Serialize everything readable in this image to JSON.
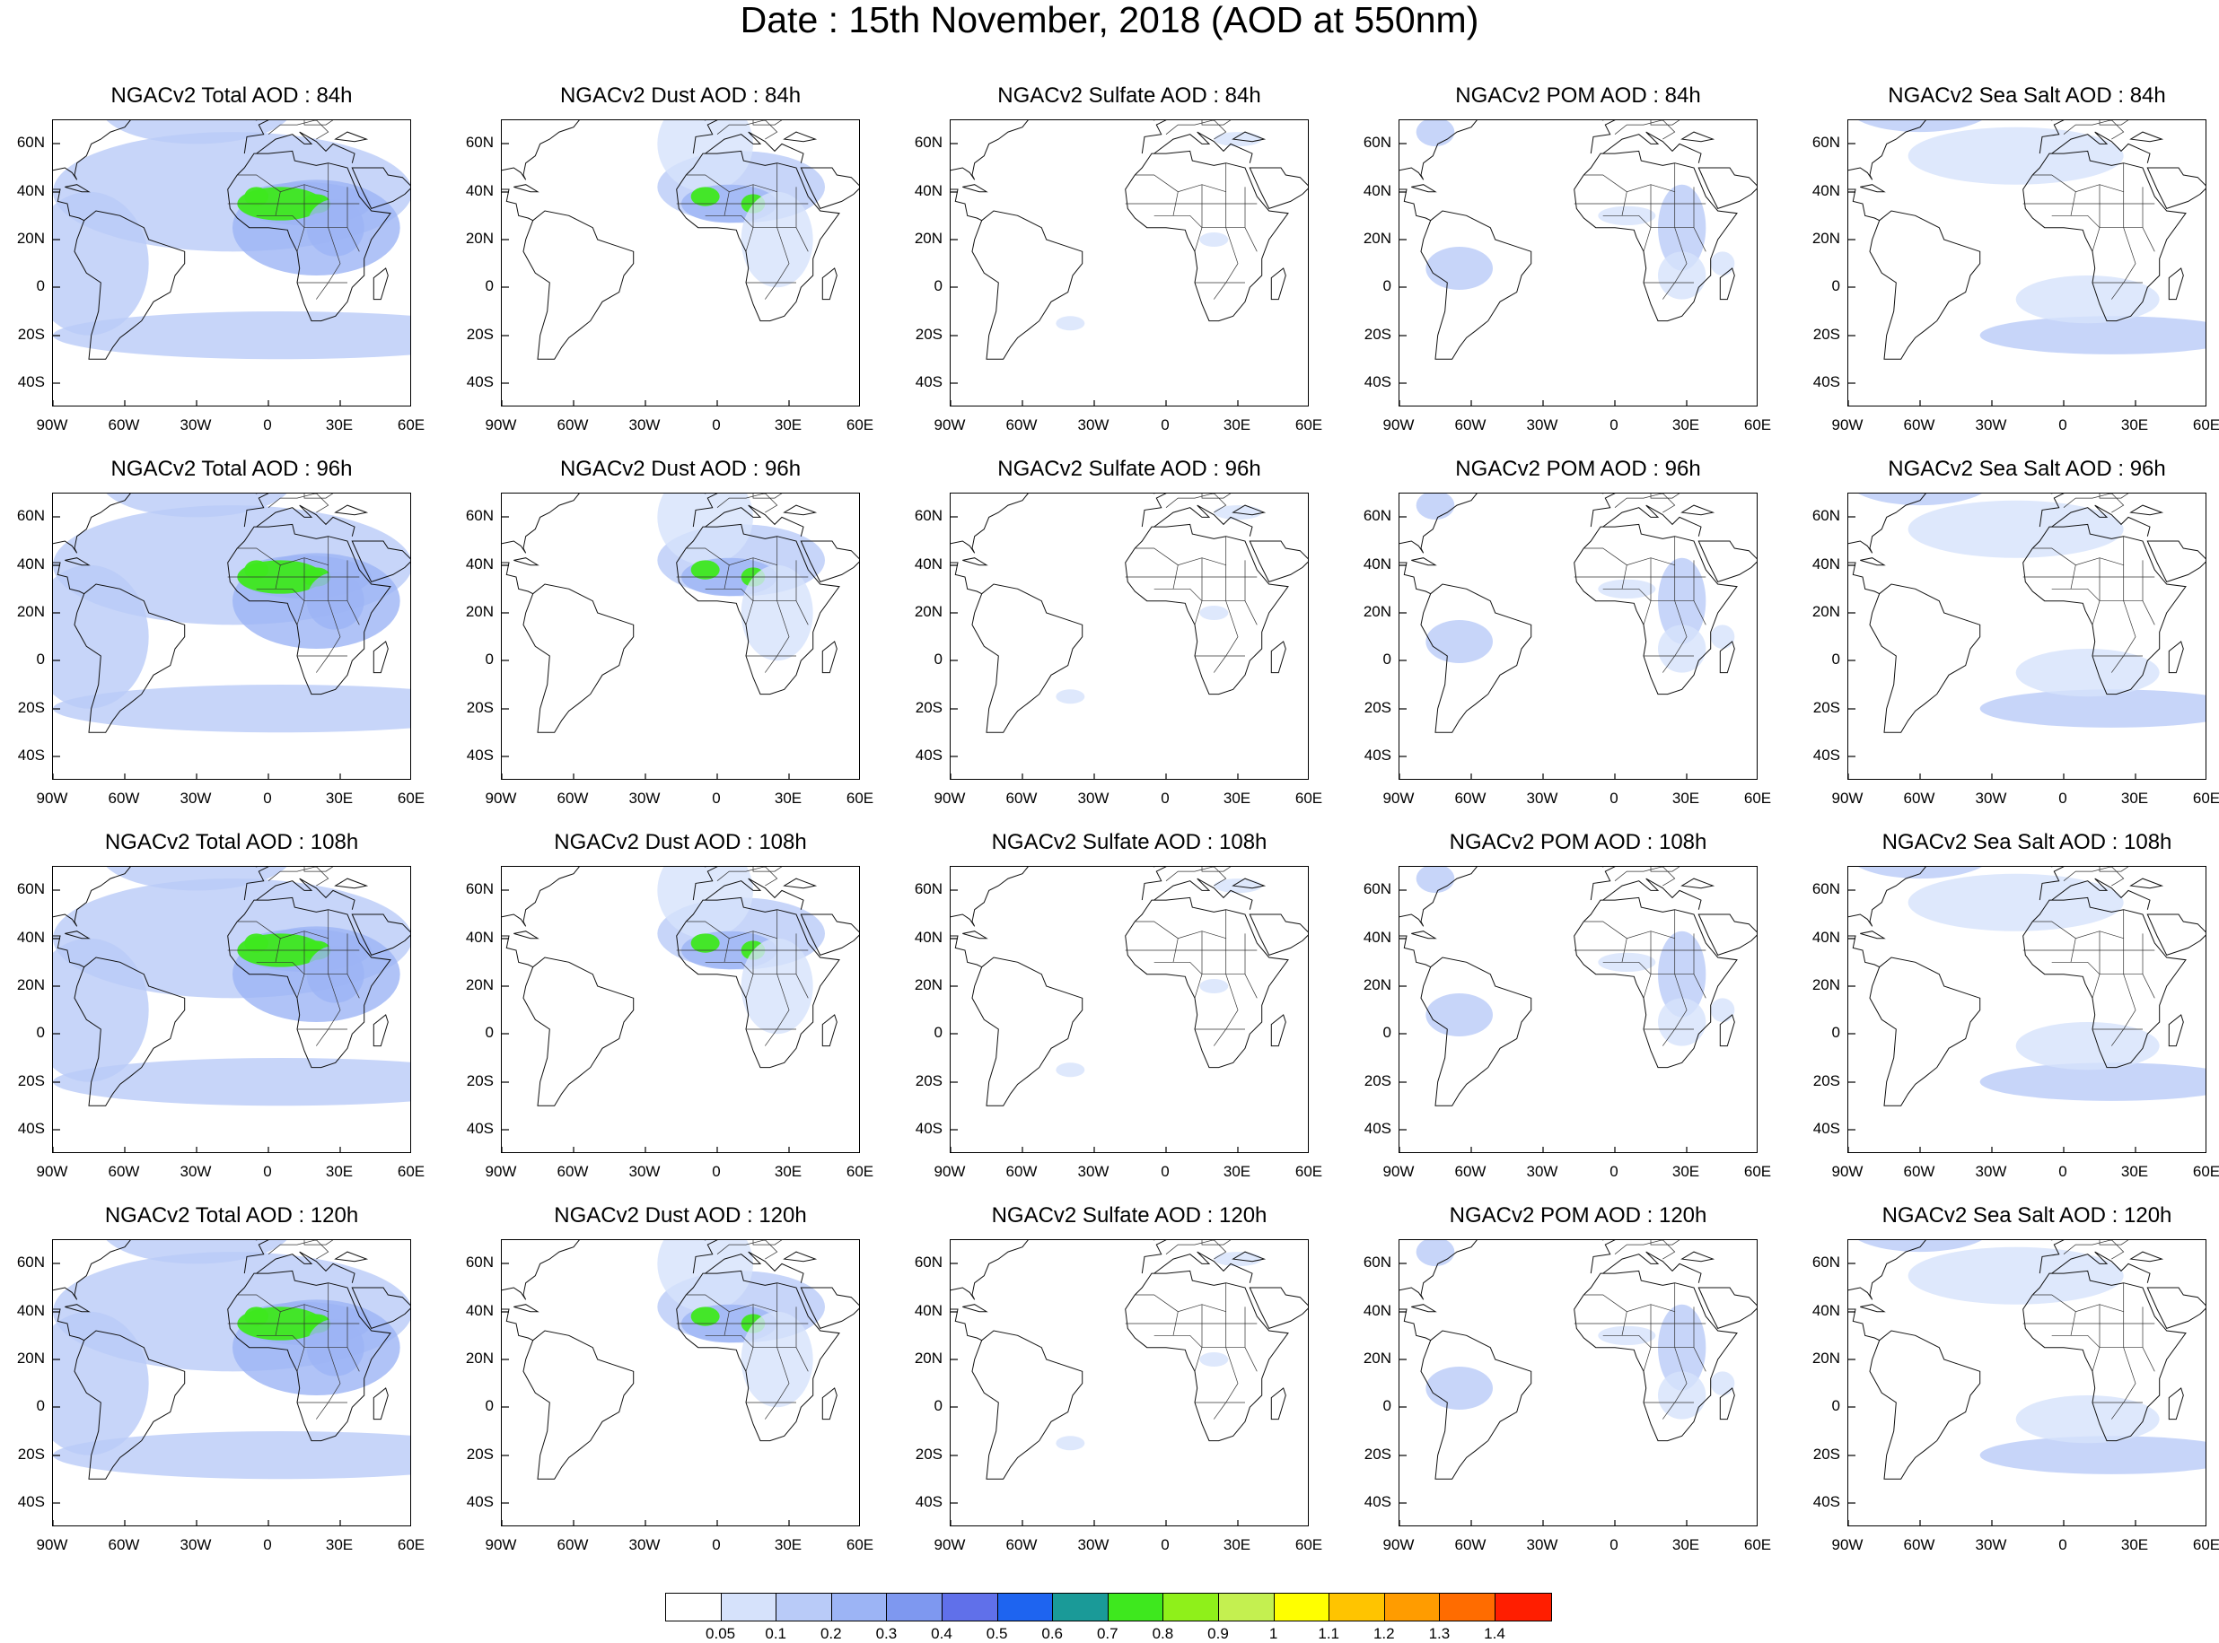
{
  "title": "Date : 15th November, 2018 (AOD at 550nm)",
  "lat_labels": [
    "60N",
    "40N",
    "20N",
    "0",
    "20S",
    "40S"
  ],
  "lon_labels": [
    "90W",
    "60W",
    "30W",
    "0",
    "30E",
    "60E"
  ],
  "panels": [
    {
      "title": "NGACv2 Total AOD : 84h",
      "kind": "total"
    },
    {
      "title": "NGACv2 Dust AOD : 84h",
      "kind": "dust"
    },
    {
      "title": "NGACv2 Sulfate AOD : 84h",
      "kind": "sulfate"
    },
    {
      "title": "NGACv2 POM AOD : 84h",
      "kind": "pom"
    },
    {
      "title": "NGACv2 Sea Salt AOD : 84h",
      "kind": "seasalt"
    },
    {
      "title": "NGACv2 Total AOD : 96h",
      "kind": "total"
    },
    {
      "title": "NGACv2 Dust AOD : 96h",
      "kind": "dust"
    },
    {
      "title": "NGACv2 Sulfate AOD : 96h",
      "kind": "sulfate"
    },
    {
      "title": "NGACv2 POM AOD : 96h",
      "kind": "pom"
    },
    {
      "title": "NGACv2 Sea Salt AOD : 96h",
      "kind": "seasalt"
    },
    {
      "title": "NGACv2 Total AOD : 108h",
      "kind": "total"
    },
    {
      "title": "NGACv2 Dust AOD : 108h",
      "kind": "dust"
    },
    {
      "title": "NGACv2 Sulfate AOD : 108h",
      "kind": "sulfate"
    },
    {
      "title": "NGACv2 POM AOD : 108h",
      "kind": "pom"
    },
    {
      "title": "NGACv2 Sea Salt AOD : 108h",
      "kind": "seasalt"
    },
    {
      "title": "NGACv2 Total AOD : 120h",
      "kind": "total"
    },
    {
      "title": "NGACv2 Dust AOD : 120h",
      "kind": "dust"
    },
    {
      "title": "NGACv2 Sulfate AOD : 120h",
      "kind": "sulfate"
    },
    {
      "title": "NGACv2 POM AOD : 120h",
      "kind": "pom"
    },
    {
      "title": "NGACv2 Sea Salt  AOD : 120h",
      "kind": "seasalt"
    }
  ],
  "colorbar": {
    "colors": [
      "#ffffff",
      "#d6e2fb",
      "#b9cbf8",
      "#9cb4f5",
      "#7e98f0",
      "#6070ea",
      "#1e64f0",
      "#1a9a98",
      "#3ee81e",
      "#8ff01a",
      "#c4f050",
      "#ffff00",
      "#ffc400",
      "#ff9c00",
      "#ff6c00",
      "#ff1e00"
    ],
    "labels": [
      "0.05",
      "0.1",
      "0.2",
      "0.3",
      "0.4",
      "0.5",
      "0.6",
      "0.7",
      "0.8",
      "0.9",
      "1",
      "1.1",
      "1.2",
      "1.3",
      "1.4"
    ]
  }
}
